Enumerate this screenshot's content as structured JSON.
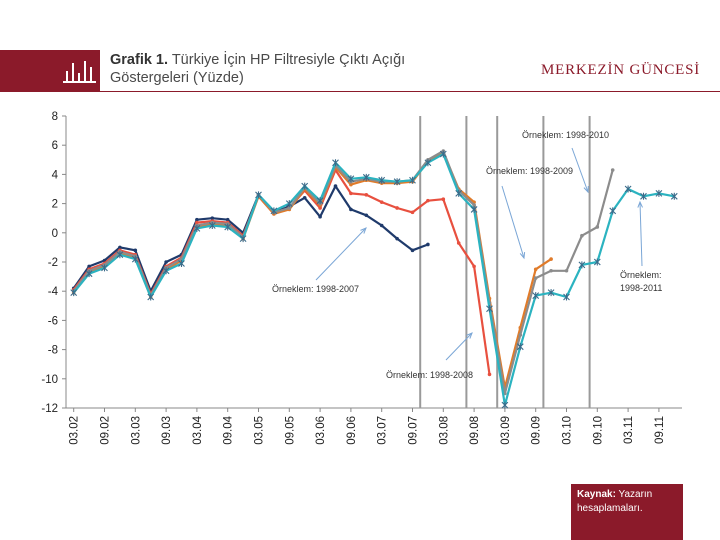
{
  "header": {
    "title_bold": "Grafik 1.",
    "title_line1": "Türkiye İçin HP Filtresiyle Çıktı Açığı",
    "title_line2": "Göstergeleri (Yüzde)",
    "brand": "MERKEZİN GÜNCESİ",
    "logo_icon": "bar-chart-icon"
  },
  "source": {
    "label": "Kaynak:",
    "text": "Yazarın hesaplamaları."
  },
  "colors": {
    "accent": "#8b1a2a"
  },
  "chart_data": {
    "type": "line",
    "title": "",
    "xlabel": "",
    "ylabel": "",
    "ylim": [
      -12,
      8
    ],
    "yticks": [
      8,
      6,
      4,
      2,
      0,
      -2,
      -4,
      -6,
      -8,
      -10,
      -12
    ],
    "x_tick_labels": [
      "03.02",
      "09.02",
      "03.03",
      "09.03",
      "03.04",
      "09.04",
      "03.05",
      "09.05",
      "03.06",
      "09.06",
      "03.07",
      "09.07",
      "03.08",
      "09.08",
      "03.09",
      "09.09",
      "03.10",
      "09.10",
      "03.11",
      "09.11"
    ],
    "x": [
      "03.02",
      "06.02",
      "09.02",
      "12.02",
      "03.03",
      "06.03",
      "09.03",
      "12.03",
      "03.04",
      "06.04",
      "09.04",
      "12.04",
      "03.05",
      "06.05",
      "09.05",
      "12.05",
      "03.06",
      "06.06",
      "09.06",
      "12.06",
      "03.07",
      "06.07",
      "09.07",
      "12.07",
      "03.08",
      "06.08",
      "09.08",
      "12.08",
      "03.09",
      "06.09",
      "09.09",
      "12.09",
      "03.10",
      "06.10",
      "09.10",
      "12.10",
      "03.11",
      "06.11",
      "09.11",
      "12.11"
    ],
    "series": [
      {
        "values": [
          -3.8,
          -2.3,
          -1.9,
          -1.0,
          -1.2,
          -4.0,
          -2.0,
          -1.5,
          0.9,
          1.0,
          0.9,
          0.0,
          2.6,
          1.4,
          1.8,
          2.4,
          1.1,
          3.2,
          1.6,
          1.2,
          0.5,
          -0.4,
          -1.2,
          -0.8,
          null,
          null,
          null,
          null,
          null,
          null,
          null,
          null,
          null,
          null,
          null,
          null,
          null,
          null,
          null,
          null
        ],
        "color": "#1f3a6b"
      },
      {
        "values": [
          -3.9,
          -2.5,
          -2.1,
          -1.2,
          -1.5,
          -4.2,
          -2.3,
          -1.7,
          0.7,
          0.8,
          0.7,
          -0.2,
          2.5,
          1.3,
          1.7,
          2.9,
          1.7,
          4.3,
          2.7,
          2.6,
          2.1,
          1.7,
          1.4,
          2.2,
          2.3,
          -0.7,
          -2.3,
          -9.7,
          null,
          null,
          null,
          null,
          null,
          null,
          null,
          null,
          null,
          null,
          null,
          null
        ],
        "color": "#e8503f"
      },
      {
        "values": [
          -4.1,
          -2.7,
          -2.3,
          -1.4,
          -1.7,
          -4.4,
          -2.5,
          -1.9,
          0.4,
          0.6,
          0.5,
          -0.4,
          2.5,
          1.3,
          1.6,
          3.0,
          1.9,
          4.5,
          3.3,
          3.6,
          3.4,
          3.4,
          3.5,
          4.9,
          5.5,
          3.0,
          2.1,
          -4.5,
          -10.6,
          -6.5,
          -2.5,
          -1.8,
          null,
          null,
          null,
          null,
          null,
          null,
          null,
          null
        ],
        "color": "#e07b2a"
      },
      {
        "values": [
          -4.0,
          -2.6,
          -2.2,
          -1.3,
          -1.6,
          -4.3,
          -2.4,
          -1.8,
          0.5,
          0.7,
          0.6,
          -0.3,
          2.6,
          1.4,
          1.7,
          3.1,
          2.0,
          4.6,
          3.5,
          3.7,
          3.5,
          3.5,
          3.6,
          5.0,
          5.6,
          2.9,
          1.9,
          -4.8,
          -11.0,
          -7.0,
          -3.1,
          -2.6,
          -2.6,
          -0.2,
          0.4,
          4.3,
          null,
          null,
          null,
          null
        ],
        "color": "#8c8c8c"
      },
      {
        "values": [
          -4.1,
          -2.8,
          -2.4,
          -1.5,
          -1.8,
          -4.4,
          -2.6,
          -2.1,
          0.3,
          0.5,
          0.4,
          -0.4,
          2.6,
          1.5,
          2.0,
          3.2,
          2.2,
          4.8,
          3.7,
          3.8,
          3.6,
          3.5,
          3.6,
          4.8,
          5.4,
          2.7,
          1.6,
          -5.2,
          -11.8,
          -7.8,
          -4.3,
          -4.1,
          -4.4,
          -2.2,
          -2.0,
          1.5,
          3.0,
          2.5,
          2.7,
          2.5
        ],
        "color": "#2bb3c0",
        "marker": "star"
      }
    ],
    "vertical_lines_at": [
      "09.07",
      "06.08",
      "12.08",
      "09.09",
      "06.10"
    ],
    "annotations": [
      {
        "text": "Örneklem: 1998-2007"
      },
      {
        "text": "Örneklem: 1998-2008"
      },
      {
        "text": "Örneklem: 1998-2009"
      },
      {
        "text": "Örneklem: 1998-2010"
      },
      {
        "text": "Örneklem:",
        "text2": "1998-2011"
      }
    ],
    "grid": false
  }
}
